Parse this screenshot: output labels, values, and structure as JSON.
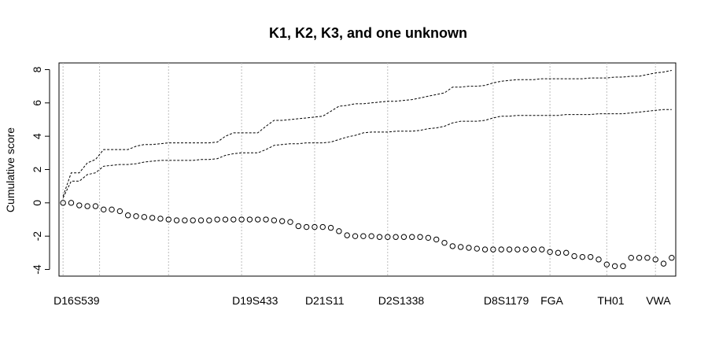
{
  "chart_data": {
    "type": "line",
    "title": "K1, K2, K3, and one unknown",
    "xlabel": "",
    "ylabel": "Cumulative score",
    "ylim": [
      -4.4,
      8.4
    ],
    "yticks": [
      -4,
      -2,
      0,
      2,
      4,
      6,
      8
    ],
    "xlim": [
      0.5,
      76.5
    ],
    "grid": "vertical dotted lines at marker boundaries",
    "markers": [
      {
        "label": "D16S539",
        "x": 1
      },
      {
        "label": "",
        "x": 5.5
      },
      {
        "label": "",
        "x": 14
      },
      {
        "label": "D19S433",
        "x": 23
      },
      {
        "label": "D21S11",
        "x": 32
      },
      {
        "label": "D2S1338",
        "x": 41
      },
      {
        "label": "D8S1179",
        "x": 54
      },
      {
        "label": "FGA",
        "x": 61
      },
      {
        "label": "TH01",
        "x": 68
      },
      {
        "label": "VWA",
        "x": 74
      }
    ],
    "series": [
      {
        "name": "",
        "style": "dashed-line",
        "x": [
          1,
          2,
          3,
          4,
          5,
          6,
          7,
          8,
          9,
          10,
          11,
          12,
          13,
          14,
          15,
          16,
          17,
          18,
          19,
          20,
          21,
          22,
          23,
          24,
          25,
          26,
          27,
          28,
          29,
          30,
          31,
          32,
          33,
          34,
          35,
          36,
          37,
          38,
          39,
          40,
          41,
          42,
          43,
          44,
          45,
          46,
          47,
          48,
          49,
          50,
          51,
          52,
          53,
          54,
          55,
          56,
          57,
          58,
          59,
          60,
          61,
          62,
          63,
          64,
          65,
          66,
          67,
          68,
          69,
          70,
          71,
          72,
          73,
          74,
          75,
          76
        ],
        "values": [
          0.4,
          1.8,
          1.8,
          2.4,
          2.6,
          3.2,
          3.2,
          3.2,
          3.2,
          3.4,
          3.5,
          3.5,
          3.55,
          3.6,
          3.6,
          3.6,
          3.6,
          3.6,
          3.6,
          3.65,
          4.0,
          4.2,
          4.2,
          4.2,
          4.2,
          4.6,
          4.95,
          4.95,
          5.0,
          5.05,
          5.1,
          5.15,
          5.2,
          5.5,
          5.8,
          5.85,
          5.95,
          5.95,
          6.0,
          6.05,
          6.1,
          6.1,
          6.15,
          6.2,
          6.3,
          6.4,
          6.5,
          6.6,
          6.95,
          6.95,
          7.0,
          7.0,
          7.05,
          7.2,
          7.3,
          7.35,
          7.4,
          7.4,
          7.4,
          7.45,
          7.45,
          7.45,
          7.45,
          7.45,
          7.45,
          7.5,
          7.5,
          7.5,
          7.55,
          7.55,
          7.6,
          7.6,
          7.7,
          7.8,
          7.85,
          7.95
        ]
      },
      {
        "name": "",
        "style": "dashed-line",
        "x": [
          1,
          2,
          3,
          4,
          5,
          6,
          7,
          8,
          9,
          10,
          11,
          12,
          13,
          14,
          15,
          16,
          17,
          18,
          19,
          20,
          21,
          22,
          23,
          24,
          25,
          26,
          27,
          28,
          29,
          30,
          31,
          32,
          33,
          34,
          35,
          36,
          37,
          38,
          39,
          40,
          41,
          42,
          43,
          44,
          45,
          46,
          47,
          48,
          49,
          50,
          51,
          52,
          53,
          54,
          55,
          56,
          57,
          58,
          59,
          60,
          61,
          62,
          63,
          64,
          65,
          66,
          67,
          68,
          69,
          70,
          71,
          72,
          73,
          74,
          75,
          76
        ],
        "values": [
          0.3,
          1.3,
          1.3,
          1.7,
          1.8,
          2.2,
          2.25,
          2.3,
          2.3,
          2.35,
          2.45,
          2.5,
          2.55,
          2.55,
          2.55,
          2.55,
          2.55,
          2.6,
          2.6,
          2.65,
          2.85,
          2.95,
          3.0,
          3.0,
          3.0,
          3.2,
          3.45,
          3.5,
          3.55,
          3.55,
          3.6,
          3.6,
          3.6,
          3.65,
          3.8,
          3.95,
          4.05,
          4.2,
          4.25,
          4.25,
          4.25,
          4.3,
          4.3,
          4.3,
          4.35,
          4.45,
          4.5,
          4.6,
          4.8,
          4.9,
          4.9,
          4.9,
          4.95,
          5.1,
          5.2,
          5.2,
          5.25,
          5.25,
          5.25,
          5.25,
          5.25,
          5.25,
          5.3,
          5.3,
          5.3,
          5.3,
          5.35,
          5.35,
          5.35,
          5.35,
          5.4,
          5.45,
          5.5,
          5.55,
          5.6,
          5.6
        ]
      },
      {
        "name": "",
        "style": "points",
        "x": [
          1,
          2,
          3,
          4,
          5,
          6,
          7,
          8,
          9,
          10,
          11,
          12,
          13,
          14,
          15,
          16,
          17,
          18,
          19,
          20,
          21,
          22,
          23,
          24,
          25,
          26,
          27,
          28,
          29,
          30,
          31,
          32,
          33,
          34,
          35,
          36,
          37,
          38,
          39,
          40,
          41,
          42,
          43,
          44,
          45,
          46,
          47,
          48,
          49,
          50,
          51,
          52,
          53,
          54,
          55,
          56,
          57,
          58,
          59,
          60,
          61,
          62,
          63,
          64,
          65,
          66,
          67,
          68,
          69,
          70,
          71,
          72,
          73,
          74,
          75,
          76
        ],
        "values": [
          0.0,
          0.0,
          -0.15,
          -0.2,
          -0.2,
          -0.4,
          -0.4,
          -0.5,
          -0.75,
          -0.8,
          -0.85,
          -0.9,
          -0.95,
          -1.0,
          -1.05,
          -1.05,
          -1.05,
          -1.05,
          -1.05,
          -1.0,
          -1.0,
          -1.0,
          -1.0,
          -1.0,
          -1.0,
          -1.0,
          -1.05,
          -1.1,
          -1.15,
          -1.4,
          -1.45,
          -1.45,
          -1.45,
          -1.5,
          -1.7,
          -1.95,
          -2.0,
          -2.0,
          -2.0,
          -2.05,
          -2.05,
          -2.05,
          -2.05,
          -2.05,
          -2.05,
          -2.1,
          -2.2,
          -2.4,
          -2.6,
          -2.65,
          -2.7,
          -2.75,
          -2.8,
          -2.8,
          -2.8,
          -2.8,
          -2.8,
          -2.8,
          -2.8,
          -2.8,
          -2.95,
          -3.0,
          -3.0,
          -3.2,
          -3.25,
          -3.25,
          -3.4,
          -3.7,
          -3.8,
          -3.8,
          -3.3,
          -3.3,
          -3.3,
          -3.4,
          -3.65,
          -3.3
        ]
      }
    ]
  }
}
